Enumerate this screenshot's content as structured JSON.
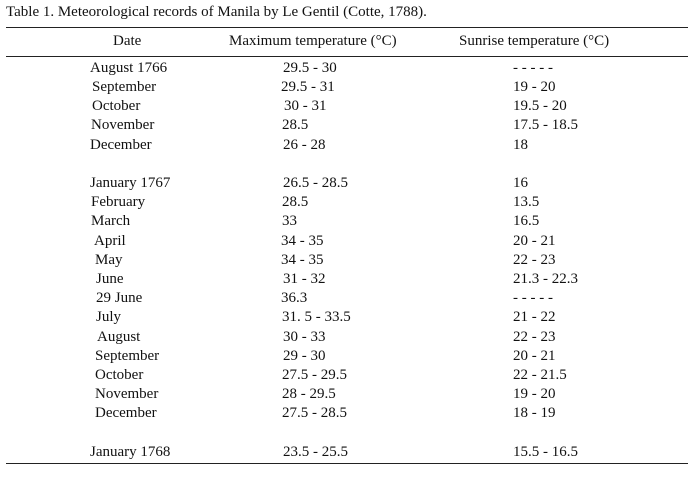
{
  "caption": "Table 1. Meteorological records of Manila by Le Gentil (Cotte, 1788).",
  "headers": {
    "date": "Date",
    "max_temp": "Maximum temperature (°C)",
    "sunrise_temp": "Sunrise temperature (°C)"
  },
  "rows": [
    {
      "date": "August 1766",
      "max": "29.5 - 30",
      "sunrise": "- - - - -"
    },
    {
      "date": "September",
      "max": "29.5 - 31",
      "sunrise": "19 - 20"
    },
    {
      "date": "October",
      "max": "30 - 31",
      "sunrise": "19.5 - 20"
    },
    {
      "date": "November",
      "max": "28.5",
      "sunrise": "17.5 - 18.5"
    },
    {
      "date": "December",
      "max": "26 - 28",
      "sunrise": "18"
    },
    {
      "date": "January 1767",
      "max": "26.5 - 28.5",
      "sunrise": "16"
    },
    {
      "date": "February",
      "max": "28.5",
      "sunrise": "13.5"
    },
    {
      "date": "March",
      "max": "33",
      "sunrise": "16.5"
    },
    {
      "date": "April",
      "max": "34 - 35",
      "sunrise": "20 - 21"
    },
    {
      "date": "May",
      "max": "34 - 35",
      "sunrise": "22 - 23"
    },
    {
      "date": "June",
      "max": "31 - 32",
      "sunrise": "21.3 - 22.3"
    },
    {
      "date": "29 June",
      "max": "36.3",
      "sunrise": "- - - - -"
    },
    {
      "date": "July",
      "max": "31. 5 - 33.5",
      "sunrise": "21 - 22"
    },
    {
      "date": "August",
      "max": "30 - 33",
      "sunrise": "22 - 23"
    },
    {
      "date": "September",
      "max": "29 - 30",
      "sunrise": "20 - 21"
    },
    {
      "date": "October",
      "max": "27.5 - 29.5",
      "sunrise": "22 - 21.5"
    },
    {
      "date": "November",
      "max": "28 - 29.5",
      "sunrise": "19 - 20"
    },
    {
      "date": "December",
      "max": "27.5 - 28.5",
      "sunrise": "18 - 19"
    },
    {
      "date": "January 1768",
      "max": "23.5 - 25.5",
      "sunrise": "15.5 - 16.5"
    }
  ]
}
